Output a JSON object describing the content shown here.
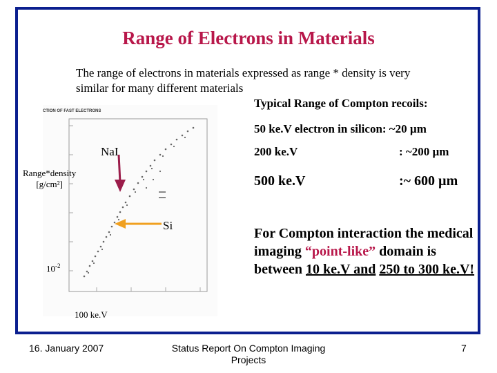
{
  "slide": {
    "title": "Range of Electrons in Materials",
    "intro_line1": "The range of electrons in materials expressed as range * density is very",
    "intro_line2": "similar for many different materials",
    "typical_heading": "Typical Range of Compton recoils:",
    "row_50": "50 ke.V electron in silicon: ~20 µm",
    "row_200_energy": "200 ke.V",
    "row_200_range": ": ~200 µm",
    "row_500_energy": "500  ke.V",
    "row_500_range": ":~ 600 µm",
    "compton": {
      "part1": "For Compton interaction the medical imaging ",
      "highlight": "“point-like”",
      "part2": " domain is between ",
      "range1": "10 ke.V and",
      "range2": "250 to 300 ke.V!"
    }
  },
  "figure": {
    "header_text": "CTION OF FAST ELECTRONS",
    "label_nai": "NaI",
    "label_si": "Si",
    "label_range_density_1": "Range*density",
    "label_range_density_2": "[g/cm²]",
    "label_10_2": "10",
    "label_10_2_exp": "-2",
    "label_100kev": "100 ke.V",
    "arrow_color": "#9b1c4a",
    "si_arrow_color": "#f0a020"
  },
  "footer": {
    "date": "16. January 2007",
    "center_line1": "Status Report On Compton Imaging",
    "center_line2": "Projects",
    "page_number": "7"
  },
  "colors": {
    "title": "#b8174a",
    "frame": "#0b1f8f",
    "highlight": "#b8174a"
  }
}
